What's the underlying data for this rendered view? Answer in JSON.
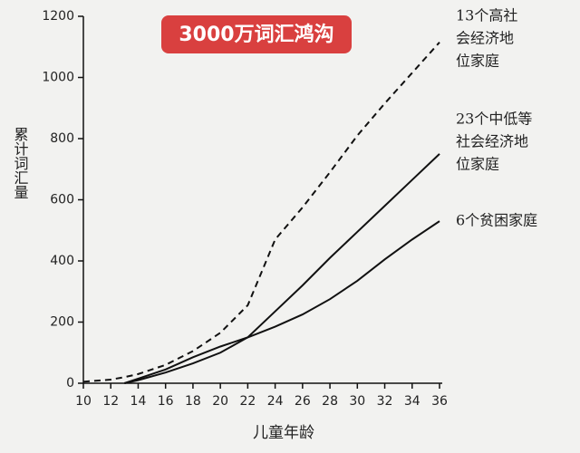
{
  "chart_data": {
    "type": "line",
    "title": "3000万词汇鸿沟",
    "y_label": "累计词汇量",
    "x_label": "儿童年龄",
    "x": [
      10,
      12,
      13,
      14,
      16,
      18,
      20,
      22,
      24,
      26,
      28,
      30,
      32,
      34,
      36
    ],
    "series": [
      {
        "name": [
          "13个高社",
          "会经济地",
          "位家庭"
        ],
        "color": "#111111",
        "dash": true,
        "values": [
          5,
          12,
          20,
          30,
          60,
          105,
          165,
          255,
          470,
          575,
          690,
          810,
          915,
          1015,
          1115
        ]
      },
      {
        "name": [
          "23个中低等",
          "社会经济地",
          "位家庭"
        ],
        "color": "#111111",
        "dash": false,
        "values": [
          null,
          null,
          0,
          10,
          35,
          65,
          100,
          150,
          235,
          320,
          410,
          495,
          580,
          665,
          750
        ]
      },
      {
        "name": [
          "6个贫困家庭"
        ],
        "color": "#111111",
        "dash": false,
        "values": [
          null,
          null,
          0,
          15,
          45,
          85,
          120,
          150,
          185,
          225,
          275,
          335,
          405,
          470,
          530
        ]
      }
    ],
    "xlim": [
      10,
      36
    ],
    "xticks": [
      10,
      12,
      14,
      16,
      18,
      20,
      22,
      24,
      26,
      28,
      30,
      32,
      34,
      36
    ],
    "ylim": [
      0,
      1200
    ],
    "yticks": [
      0,
      200,
      400,
      600,
      800,
      1000,
      1200
    ]
  }
}
